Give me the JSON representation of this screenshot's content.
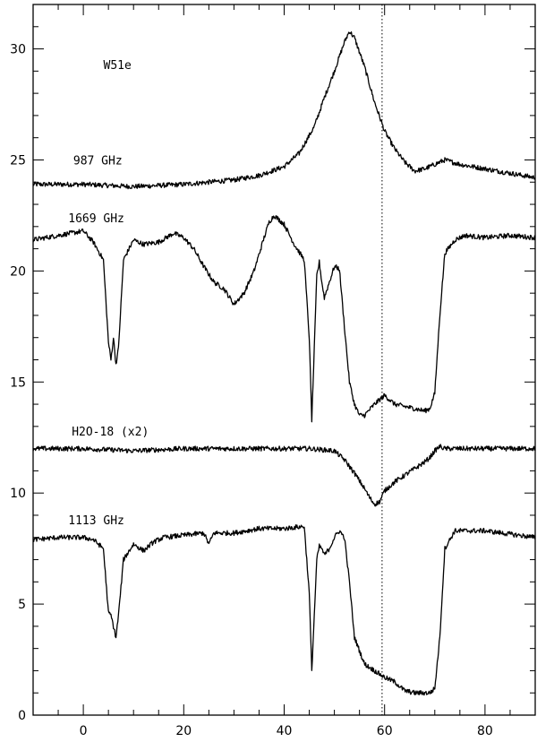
{
  "chart_data": {
    "type": "line",
    "title": "",
    "xlabel": "",
    "ylabel": "",
    "xlim": [
      -10,
      90
    ],
    "ylim": [
      0,
      32
    ],
    "xticks": [
      0,
      20,
      40,
      60,
      80
    ],
    "yticks": [
      0,
      5,
      10,
      15,
      20,
      25,
      30
    ],
    "grid": false,
    "legend": "none",
    "annotations": [
      {
        "text": "W51e",
        "x": 4,
        "y": 29.1
      },
      {
        "text": "987 GHz",
        "x": -2,
        "y": 24.8
      },
      {
        "text": "1669 GHz",
        "x": -3,
        "y": 22.2
      },
      {
        "text": "H2O-18 (x2)",
        "x": -2.3,
        "y": 12.6
      },
      {
        "text": "1113 GHz",
        "x": -3,
        "y": 8.6
      }
    ],
    "reference_lines": [
      {
        "orientation": "vertical",
        "x": 59.5,
        "style": "dotted"
      }
    ],
    "series": [
      {
        "x": [
          -10,
          0,
          10,
          20,
          30,
          35,
          40,
          43,
          46,
          48,
          50,
          52,
          53,
          54,
          56,
          58,
          60,
          62,
          64,
          66,
          68,
          70,
          72,
          75,
          80,
          85,
          90
        ],
        "y": [
          23.9,
          23.9,
          23.8,
          23.9,
          24.1,
          24.3,
          24.7,
          25.3,
          26.5,
          27.8,
          29.0,
          30.3,
          30.8,
          30.5,
          29.2,
          27.6,
          26.3,
          25.5,
          24.9,
          24.5,
          24.6,
          24.8,
          25.0,
          24.8,
          24.6,
          24.4,
          24.2
        ]
      },
      {
        "x": [
          -10,
          -5,
          0,
          2,
          4,
          5,
          5.5,
          6,
          6.5,
          7,
          8,
          10,
          12,
          15,
          18,
          20,
          22,
          24,
          26,
          28,
          30,
          32,
          34,
          36,
          37,
          38,
          40,
          42,
          44,
          45,
          45.5,
          46,
          46.5,
          47,
          47.5,
          48,
          49,
          50,
          51,
          52,
          53,
          54,
          55,
          56,
          58,
          60,
          62,
          64,
          66,
          68,
          69,
          70,
          71,
          72,
          74,
          76,
          80,
          85,
          90
        ],
        "y": [
          21.4,
          21.6,
          21.8,
          21.3,
          20.5,
          16.8,
          16.0,
          17.0,
          15.8,
          16.5,
          20.5,
          21.4,
          21.2,
          21.3,
          21.7,
          21.5,
          21.0,
          20.2,
          19.5,
          19.2,
          18.5,
          19.0,
          20.0,
          21.5,
          22.2,
          22.5,
          22.1,
          21.2,
          20.5,
          17.0,
          13.3,
          16.5,
          19.8,
          20.4,
          19.5,
          18.8,
          19.5,
          20.2,
          20.1,
          17.5,
          15.0,
          14.0,
          13.5,
          13.5,
          14.0,
          14.4,
          14.0,
          13.9,
          13.8,
          13.7,
          13.8,
          14.5,
          18.0,
          20.8,
          21.4,
          21.6,
          21.5,
          21.6,
          21.5
        ]
      },
      {
        "x": [
          -10,
          0,
          10,
          20,
          30,
          40,
          45,
          50,
          52,
          54,
          56,
          57,
          58,
          59,
          60,
          62,
          64,
          66,
          68,
          69,
          70,
          71,
          72,
          80,
          90
        ],
        "y": [
          12.0,
          12.0,
          11.9,
          12.0,
          12.0,
          12.0,
          12.0,
          11.9,
          11.5,
          10.9,
          10.2,
          9.8,
          9.5,
          9.6,
          10.1,
          10.5,
          10.8,
          11.1,
          11.4,
          11.6,
          11.9,
          12.1,
          12.0,
          12.0,
          12.0
        ]
      },
      {
        "x": [
          -10,
          -5,
          0,
          2,
          4,
          5,
          5.5,
          6,
          6.5,
          7,
          8,
          10,
          12,
          14,
          16,
          20,
          24,
          25,
          26,
          30,
          35,
          40,
          44,
          45,
          45.5,
          46,
          46.5,
          47,
          47.5,
          48,
          49,
          50,
          51,
          52,
          53,
          54,
          56,
          58,
          60,
          62,
          64,
          66,
          68,
          69,
          70,
          71,
          72,
          74,
          80,
          90
        ],
        "y": [
          7.9,
          8.0,
          8.0,
          7.9,
          7.5,
          4.6,
          4.5,
          4.0,
          3.5,
          4.5,
          7.0,
          7.7,
          7.4,
          7.8,
          8.0,
          8.1,
          8.2,
          7.7,
          8.2,
          8.2,
          8.4,
          8.4,
          8.5,
          5.5,
          2.0,
          4.5,
          7.0,
          7.6,
          7.5,
          7.2,
          7.5,
          8.0,
          8.3,
          8.0,
          6.0,
          3.5,
          2.3,
          2.0,
          1.7,
          1.5,
          1.1,
          1.0,
          1.0,
          1.0,
          1.2,
          3.5,
          7.5,
          8.3,
          8.3,
          8.0
        ]
      }
    ]
  }
}
